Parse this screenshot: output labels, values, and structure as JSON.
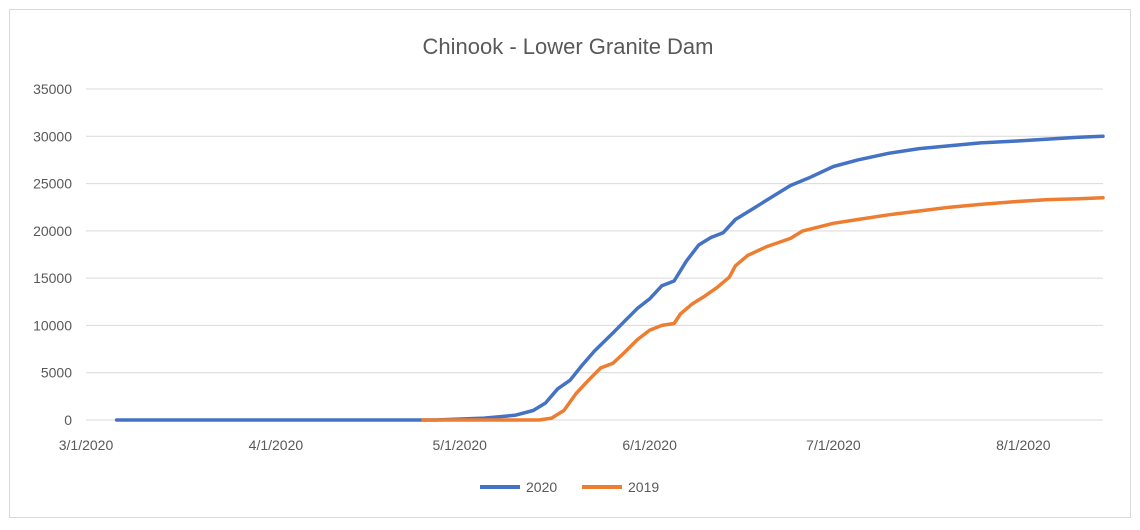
{
  "chart_data": {
    "type": "line",
    "title": "Chinook - Lower Granite Dam",
    "xlabel": "",
    "ylabel": "",
    "ylim": [
      0,
      35000
    ],
    "xlim": [
      "3/1/2020",
      "8/14/2020"
    ],
    "yticks": [
      "0",
      "5000",
      "10000",
      "15000",
      "20000",
      "25000",
      "30000",
      "35000"
    ],
    "xticks": [
      "3/1/2020",
      "4/1/2020",
      "5/1/2020",
      "6/1/2020",
      "7/1/2020",
      "8/1/2020"
    ],
    "grid": true,
    "legend_position": "bottom",
    "series": [
      {
        "name": "2020",
        "color": "#4472C4",
        "points": [
          [
            "3/6/2020",
            0
          ],
          [
            "4/27/2020",
            0
          ],
          [
            "5/5/2020",
            200
          ],
          [
            "5/10/2020",
            500
          ],
          [
            "5/13/2020",
            1000
          ],
          [
            "5/15/2020",
            1800
          ],
          [
            "5/17/2020",
            3300
          ],
          [
            "5/19/2020",
            4200
          ],
          [
            "5/21/2020",
            5800
          ],
          [
            "5/23/2020",
            7300
          ],
          [
            "5/26/2020",
            9200
          ],
          [
            "5/28/2020",
            10500
          ],
          [
            "5/30/2020",
            11800
          ],
          [
            "6/1/2020",
            12800
          ],
          [
            "6/3/2020",
            14200
          ],
          [
            "6/5/2020",
            14700
          ],
          [
            "6/7/2020",
            16800
          ],
          [
            "6/9/2020",
            18500
          ],
          [
            "6/11/2020",
            19300
          ],
          [
            "6/13/2020",
            19800
          ],
          [
            "6/15/2020",
            21200
          ],
          [
            "6/18/2020",
            22400
          ],
          [
            "6/21/2020",
            23600
          ],
          [
            "6/24/2020",
            24800
          ],
          [
            "6/27/2020",
            25600
          ],
          [
            "7/1/2020",
            26800
          ],
          [
            "7/5/2020",
            27500
          ],
          [
            "7/10/2020",
            28200
          ],
          [
            "7/15/2020",
            28700
          ],
          [
            "7/20/2020",
            29000
          ],
          [
            "7/25/2020",
            29300
          ],
          [
            "7/31/2020",
            29500
          ],
          [
            "8/5/2020",
            29700
          ],
          [
            "8/10/2020",
            29900
          ],
          [
            "8/14/2020",
            30000
          ]
        ]
      },
      {
        "name": "2019",
        "color": "#ED7D31",
        "points": [
          [
            "4/25/2020",
            0
          ],
          [
            "5/14/2020",
            0
          ],
          [
            "5/16/2020",
            200
          ],
          [
            "5/18/2020",
            1000
          ],
          [
            "5/20/2020",
            2800
          ],
          [
            "5/22/2020",
            4200
          ],
          [
            "5/24/2020",
            5500
          ],
          [
            "5/26/2020",
            6000
          ],
          [
            "5/28/2020",
            7200
          ],
          [
            "5/30/2020",
            8500
          ],
          [
            "6/1/2020",
            9500
          ],
          [
            "6/3/2020",
            10000
          ],
          [
            "6/5/2020",
            10200
          ],
          [
            "6/6/2020",
            11200
          ],
          [
            "6/8/2020",
            12300
          ],
          [
            "6/10/2020",
            13100
          ],
          [
            "6/12/2020",
            14000
          ],
          [
            "6/14/2020",
            15100
          ],
          [
            "6/15/2020",
            16300
          ],
          [
            "6/17/2020",
            17400
          ],
          [
            "6/20/2020",
            18300
          ],
          [
            "6/24/2020",
            19200
          ],
          [
            "6/26/2020",
            20000
          ],
          [
            "7/1/2020",
            20800
          ],
          [
            "7/5/2020",
            21200
          ],
          [
            "7/10/2020",
            21700
          ],
          [
            "7/15/2020",
            22100
          ],
          [
            "7/20/2020",
            22500
          ],
          [
            "7/25/2020",
            22800
          ],
          [
            "7/31/2020",
            23100
          ],
          [
            "8/5/2020",
            23300
          ],
          [
            "8/10/2020",
            23400
          ],
          [
            "8/14/2020",
            23500
          ]
        ]
      }
    ]
  }
}
